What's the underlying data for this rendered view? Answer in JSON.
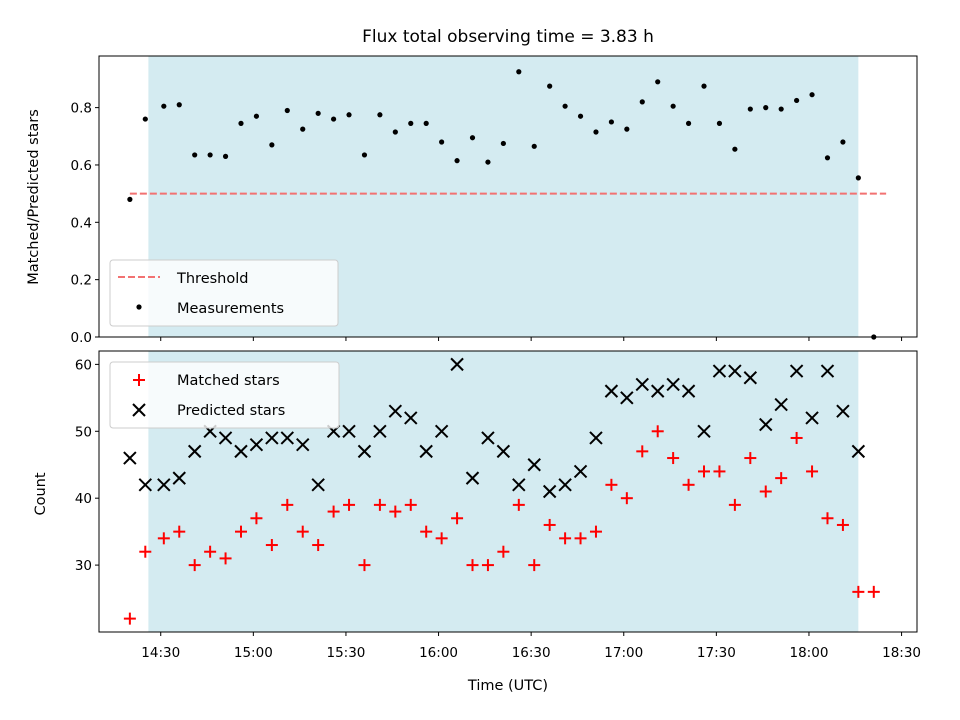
{
  "chart_data": [
    {
      "type": "scatter",
      "title": "Flux total observing time = 3.83 h",
      "xlabel": "",
      "ylabel": "Matched/Predicted stars",
      "ylim": [
        0,
        0.98
      ],
      "yticks": [
        "0.0",
        "0.2",
        "0.4",
        "0.6",
        "0.8"
      ],
      "ytick_values": [
        0,
        0.2,
        0.4,
        0.6,
        0.8
      ],
      "xlim": [
        "14:10",
        "18:35"
      ],
      "shaded_span": [
        "14:26",
        "18:16"
      ],
      "shaded_color": "#d4ebf1",
      "threshold": {
        "name": "Threshold",
        "value": 0.5,
        "x": [
          "14:20",
          "18:25"
        ],
        "color": "#f27272",
        "style": "dashed"
      },
      "series": [
        {
          "name": "Measurements",
          "color": "#000000",
          "marker": "dot",
          "points": [
            [
              "14:20",
              0.48
            ],
            [
              "14:25",
              0.76
            ],
            [
              "14:31",
              0.805
            ],
            [
              "14:36",
              0.81
            ],
            [
              "14:41",
              0.635
            ],
            [
              "14:46",
              0.635
            ],
            [
              "14:51",
              0.63
            ],
            [
              "14:56",
              0.745
            ],
            [
              "15:01",
              0.77
            ],
            [
              "15:06",
              0.67
            ],
            [
              "15:11",
              0.79
            ],
            [
              "15:16",
              0.725
            ],
            [
              "15:21",
              0.78
            ],
            [
              "15:26",
              0.76
            ],
            [
              "15:31",
              0.775
            ],
            [
              "15:36",
              0.635
            ],
            [
              "15:41",
              0.775
            ],
            [
              "15:46",
              0.715
            ],
            [
              "15:51",
              0.745
            ],
            [
              "15:56",
              0.745
            ],
            [
              "16:01",
              0.68
            ],
            [
              "16:06",
              0.615
            ],
            [
              "16:11",
              0.695
            ],
            [
              "16:16",
              0.61
            ],
            [
              "16:21",
              0.675
            ],
            [
              "16:26",
              0.925
            ],
            [
              "16:31",
              0.665
            ],
            [
              "16:36",
              0.875
            ],
            [
              "16:41",
              0.805
            ],
            [
              "16:46",
              0.77
            ],
            [
              "16:51",
              0.715
            ],
            [
              "16:56",
              0.75
            ],
            [
              "17:01",
              0.725
            ],
            [
              "17:06",
              0.82
            ],
            [
              "17:11",
              0.89
            ],
            [
              "17:16",
              0.805
            ],
            [
              "17:21",
              0.745
            ],
            [
              "17:26",
              0.875
            ],
            [
              "17:31",
              0.745
            ],
            [
              "17:36",
              0.655
            ],
            [
              "17:41",
              0.795
            ],
            [
              "17:46",
              0.8
            ],
            [
              "17:51",
              0.795
            ],
            [
              "17:56",
              0.825
            ],
            [
              "18:01",
              0.845
            ],
            [
              "18:06",
              0.625
            ],
            [
              "18:11",
              0.68
            ],
            [
              "18:16",
              0.555
            ],
            [
              "18:21",
              0.0
            ]
          ]
        }
      ],
      "legend": {
        "placement": "lower-left",
        "entries": [
          "Threshold",
          "Measurements"
        ]
      },
      "grid": false
    },
    {
      "type": "scatter",
      "xlabel": "Time (UTC)",
      "ylabel": "Count",
      "ylim": [
        20,
        62
      ],
      "yticks": [
        "30",
        "40",
        "50",
        "60"
      ],
      "ytick_values": [
        30,
        40,
        50,
        60
      ],
      "xlim": [
        "14:10",
        "18:35"
      ],
      "xticks": [
        "14:30",
        "15:00",
        "15:30",
        "16:00",
        "16:30",
        "17:00",
        "17:30",
        "18:00",
        "18:30"
      ],
      "shaded_span": [
        "14:26",
        "18:16"
      ],
      "shaded_color": "#d4ebf1",
      "x": [
        "14:20",
        "14:25",
        "14:31",
        "14:36",
        "14:41",
        "14:46",
        "14:51",
        "14:56",
        "15:01",
        "15:06",
        "15:11",
        "15:16",
        "15:21",
        "15:26",
        "15:31",
        "15:36",
        "15:41",
        "15:46",
        "15:51",
        "15:56",
        "16:01",
        "16:06",
        "16:11",
        "16:16",
        "16:21",
        "16:26",
        "16:31",
        "16:36",
        "16:41",
        "16:46",
        "16:51",
        "16:56",
        "17:01",
        "17:06",
        "17:11",
        "17:16",
        "17:21",
        "17:26",
        "17:31",
        "17:36",
        "17:41",
        "17:46",
        "17:51",
        "17:56",
        "18:01",
        "18:06",
        "18:11",
        "18:16",
        "18:21"
      ],
      "series": [
        {
          "name": "Matched stars",
          "color": "#ff0000",
          "marker": "plus",
          "values": [
            22,
            32,
            34,
            35,
            30,
            32,
            31,
            35,
            37,
            33,
            39,
            35,
            33,
            38,
            39,
            30,
            39,
            38,
            39,
            35,
            34,
            37,
            30,
            30,
            32,
            39,
            30,
            36,
            34,
            34,
            35,
            42,
            40,
            47,
            50,
            46,
            42,
            44,
            44,
            39,
            46,
            41,
            43,
            49,
            44,
            37,
            36,
            26,
            26
          ]
        },
        {
          "name": "Predicted stars",
          "color": "#000000",
          "marker": "x",
          "values": [
            46,
            42,
            42,
            43,
            47,
            50,
            49,
            47,
            48,
            49,
            49,
            48,
            42,
            50,
            50,
            47,
            50,
            53,
            52,
            47,
            50,
            60,
            43,
            49,
            47,
            42,
            45,
            41,
            42,
            44,
            49,
            56,
            55,
            57,
            56,
            57,
            56,
            50,
            59,
            59,
            58,
            51,
            54,
            59,
            52,
            59,
            53,
            47,
            null
          ]
        }
      ],
      "legend": {
        "placement": "upper-left",
        "entries": [
          "Matched stars",
          "Predicted stars"
        ]
      },
      "grid": false
    }
  ]
}
